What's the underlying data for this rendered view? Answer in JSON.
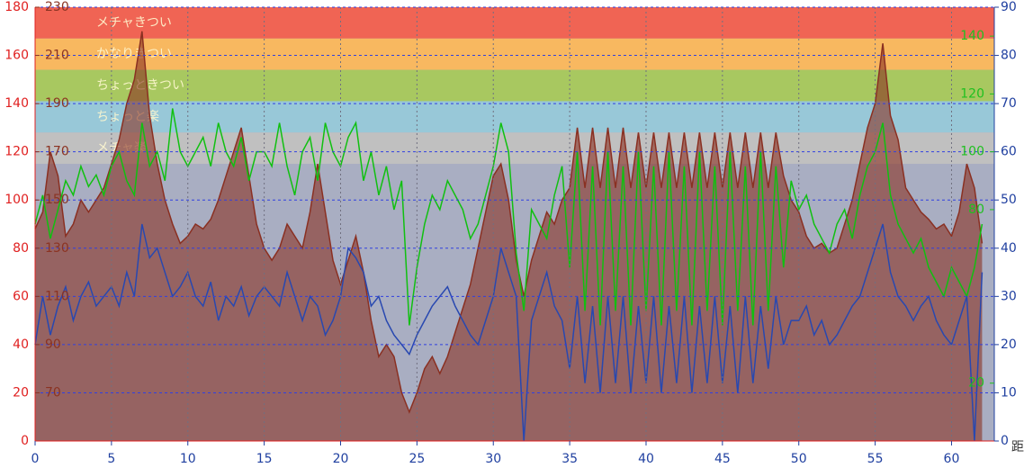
{
  "chart_data": {
    "type": "line",
    "xlabel": "距",
    "xlim": [
      0,
      62.8
    ],
    "xticks": [
      0,
      5,
      10,
      15,
      20,
      25,
      30,
      35,
      40,
      45,
      50,
      55,
      60
    ],
    "ylim": [
      0,
      180
    ],
    "yticks": [
      0,
      20,
      40,
      60,
      80,
      100,
      120,
      140,
      160,
      180
    ],
    "ycolor": "#e02020",
    "hrlim": [
      50,
      230
    ],
    "hrticks": [
      70,
      90,
      110,
      130,
      150,
      170,
      190,
      210,
      230
    ],
    "hrcolor": "#8b3322",
    "y2lim": [
      0,
      90
    ],
    "y2ticks": [
      0,
      10,
      20,
      30,
      40,
      50,
      60,
      70,
      80,
      90
    ],
    "y2color": "#2040a0",
    "y3lim": [
      0,
      150
    ],
    "y3ticks": [
      20,
      80,
      100,
      120,
      140
    ],
    "y3color": "#20c020",
    "grid": true,
    "zones": [
      {
        "name": "メチャきつい",
        "from": 217,
        "to": 230,
        "color": "#f06454"
      },
      {
        "name": "かなりきつい",
        "from": 204,
        "to": 217,
        "color": "#f8b860"
      },
      {
        "name": "ちょっときつい",
        "from": 191,
        "to": 204,
        "color": "#a8c860"
      },
      {
        "name": "ちょっと楽",
        "from": 178,
        "to": 191,
        "color": "#98c8d8"
      },
      {
        "name": "メチャ楽",
        "from": 165,
        "to": 178,
        "color": "#c0c0c0"
      }
    ],
    "x": [
      0,
      0.5,
      1,
      1.5,
      2,
      2.5,
      3,
      3.5,
      4,
      4.5,
      5,
      5.5,
      6,
      6.5,
      7,
      7.5,
      8,
      8.5,
      9,
      9.5,
      10,
      10.5,
      11,
      11.5,
      12,
      12.5,
      13,
      13.5,
      14,
      14.5,
      15,
      15.5,
      16,
      16.5,
      17,
      17.5,
      18,
      18.5,
      19,
      19.5,
      20,
      20.5,
      21,
      21.5,
      22,
      22.5,
      23,
      23.5,
      24,
      24.5,
      25,
      25.5,
      26,
      26.5,
      27,
      27.5,
      28,
      28.5,
      29,
      29.5,
      30,
      30.5,
      31,
      31.5,
      32,
      32.5,
      33,
      33.5,
      34,
      34.5,
      35,
      35.5,
      36,
      36.5,
      37,
      37.5,
      38,
      38.5,
      39,
      39.5,
      40,
      40.5,
      41,
      41.5,
      42,
      42.5,
      43,
      43.5,
      44,
      44.5,
      45,
      45.5,
      46,
      46.5,
      47,
      47.5,
      48,
      48.5,
      49,
      49.5,
      50,
      50.5,
      51,
      51.5,
      52,
      52.5,
      53,
      53.5,
      54,
      54.5,
      55,
      55.5,
      56,
      56.5,
      57,
      57.5,
      58,
      58.5,
      59,
      59.5,
      60,
      60.5,
      61,
      61.5,
      62
    ],
    "series": [
      {
        "kind": "area",
        "axis": "y",
        "color": "#8a3022",
        "values": [
          88,
          95,
          120,
          110,
          85,
          90,
          100,
          95,
          100,
          105,
          115,
          125,
          140,
          150,
          170,
          135,
          115,
          100,
          90,
          82,
          85,
          90,
          88,
          92,
          100,
          110,
          120,
          130,
          110,
          90,
          80,
          75,
          80,
          90,
          85,
          80,
          95,
          115,
          95,
          75,
          65,
          75,
          85,
          70,
          50,
          35,
          40,
          35,
          20,
          12,
          20,
          30,
          35,
          28,
          35,
          45,
          55,
          65,
          80,
          95,
          110,
          115,
          100,
          75,
          60,
          75,
          85,
          95,
          90,
          100,
          105,
          130,
          105,
          130,
          105,
          130,
          105,
          130,
          105,
          128,
          105,
          128,
          105,
          128,
          105,
          128,
          105,
          128,
          105,
          128,
          105,
          128,
          105,
          128,
          105,
          128,
          105,
          128,
          110,
          100,
          95,
          85,
          80,
          82,
          78,
          80,
          90,
          100,
          115,
          130,
          140,
          165,
          135,
          125,
          105,
          100,
          95,
          92,
          88,
          90,
          85,
          95,
          115,
          105,
          82
        ]
      },
      {
        "kind": "line",
        "axis": "y3",
        "color": "#10c010",
        "values": [
          75,
          85,
          70,
          80,
          90,
          85,
          95,
          88,
          92,
          85,
          95,
          100,
          90,
          85,
          110,
          95,
          100,
          90,
          115,
          100,
          95,
          100,
          105,
          95,
          110,
          100,
          95,
          105,
          90,
          100,
          100,
          95,
          110,
          95,
          85,
          100,
          105,
          90,
          110,
          100,
          95,
          105,
          110,
          90,
          100,
          85,
          95,
          80,
          90,
          40,
          60,
          75,
          85,
          80,
          90,
          85,
          80,
          70,
          75,
          85,
          95,
          110,
          100,
          65,
          45,
          80,
          75,
          70,
          85,
          95,
          60,
          100,
          45,
          95,
          40,
          100,
          45,
          95,
          40,
          100,
          45,
          95,
          40,
          100,
          45,
          95,
          40,
          100,
          45,
          95,
          40,
          100,
          45,
          95,
          40,
          100,
          45,
          95,
          60,
          90,
          80,
          85,
          75,
          70,
          65,
          75,
          80,
          70,
          85,
          95,
          100,
          110,
          85,
          75,
          70,
          65,
          70,
          60,
          55,
          50,
          60,
          55,
          50,
          60,
          75
        ]
      },
      {
        "kind": "line",
        "axis": "y2",
        "color": "#2848b0",
        "values": [
          20,
          30,
          22,
          28,
          32,
          25,
          30,
          33,
          28,
          30,
          32,
          28,
          35,
          30,
          45,
          38,
          40,
          35,
          30,
          32,
          35,
          30,
          28,
          33,
          25,
          30,
          28,
          32,
          26,
          30,
          32,
          30,
          28,
          35,
          30,
          25,
          30,
          28,
          22,
          25,
          30,
          40,
          38,
          35,
          28,
          30,
          25,
          22,
          20,
          18,
          22,
          25,
          28,
          30,
          32,
          28,
          25,
          22,
          20,
          25,
          30,
          40,
          35,
          30,
          0,
          25,
          30,
          35,
          28,
          25,
          15,
          30,
          12,
          28,
          10,
          30,
          12,
          30,
          10,
          28,
          12,
          30,
          10,
          28,
          12,
          30,
          10,
          28,
          12,
          30,
          12,
          28,
          10,
          30,
          12,
          28,
          15,
          30,
          20,
          25,
          25,
          28,
          22,
          25,
          20,
          22,
          25,
          28,
          30,
          35,
          40,
          45,
          35,
          30,
          28,
          25,
          28,
          30,
          25,
          22,
          20,
          25,
          30,
          0,
          35
        ]
      }
    ]
  }
}
